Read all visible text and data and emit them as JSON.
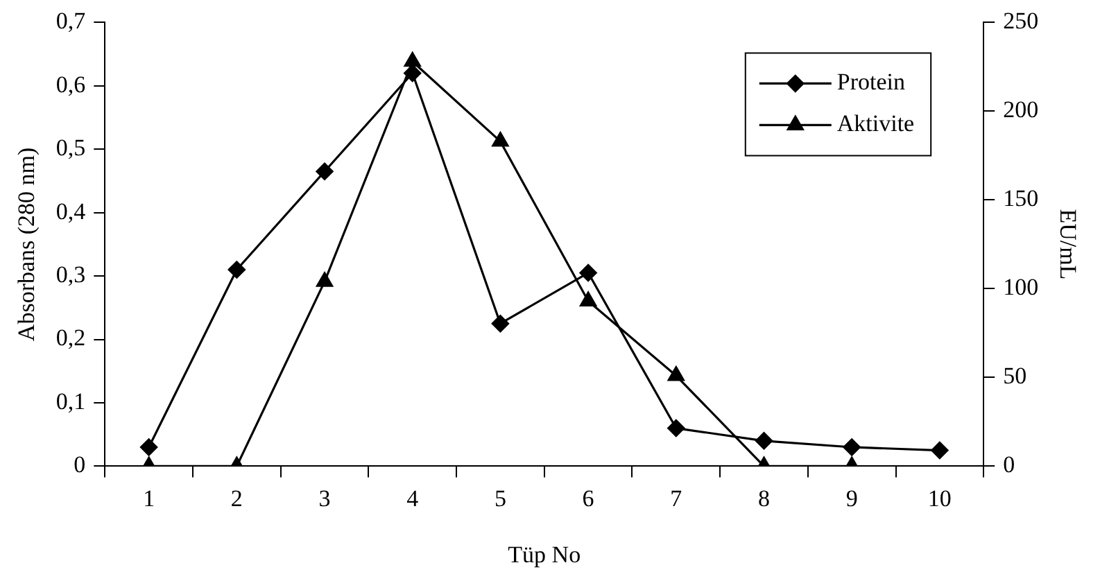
{
  "chart_data": {
    "type": "line",
    "xlabel": "Tüp No",
    "ylabel": "Absorbans (280 nm)",
    "y2label": "EU/mL",
    "categories": [
      "1",
      "2",
      "3",
      "4",
      "5",
      "6",
      "7",
      "8",
      "9",
      "10"
    ],
    "series": [
      {
        "name": "Protein",
        "color": "#000000",
        "marker": "diamond",
        "values": [
          0.03,
          0.31,
          0.465,
          0.62,
          0.225,
          0.305,
          0.06,
          0.04,
          0.03,
          0.025
        ]
      },
      {
        "name": "Aktivite",
        "color": "#000000",
        "marker": "triangle",
        "axis": "y2",
        "values": [
          0,
          0,
          104,
          228,
          183,
          93,
          51,
          0,
          0,
          null
        ]
      }
    ],
    "ylim": [
      0,
      0.7
    ],
    "yticks": [
      {
        "value": 0,
        "label": "0"
      },
      {
        "value": 0.1,
        "label": "0,1"
      },
      {
        "value": 0.2,
        "label": "0,2"
      },
      {
        "value": 0.3,
        "label": "0,3"
      },
      {
        "value": 0.4,
        "label": "0,4"
      },
      {
        "value": 0.5,
        "label": "0,5"
      },
      {
        "value": 0.6,
        "label": "0,6"
      },
      {
        "value": 0.7,
        "label": "0,7"
      }
    ],
    "y2lim": [
      0,
      250
    ],
    "y2ticks": [
      0,
      50,
      100,
      150,
      200,
      250
    ],
    "grid": false,
    "legend": "top right",
    "line_style": "solid"
  }
}
